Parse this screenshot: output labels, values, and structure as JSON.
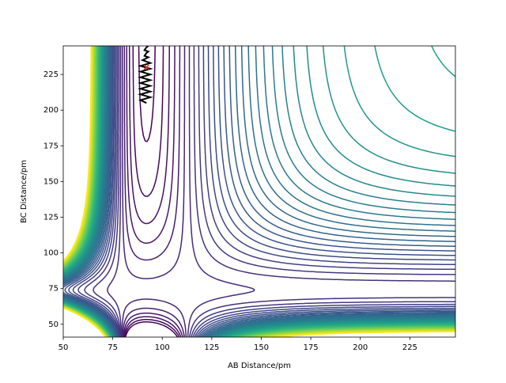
{
  "chart_data": {
    "type": "contour",
    "x_label": "AB Distance/pm",
    "y_label": "BC Distance/pm",
    "xlim": [
      50,
      248
    ],
    "ylim": [
      41,
      245
    ],
    "xticks": [
      50,
      75,
      100,
      125,
      150,
      175,
      200,
      225
    ],
    "yticks": [
      50,
      75,
      100,
      125,
      150,
      175,
      200,
      225
    ],
    "grid": false,
    "colormap": "viridis",
    "levels": [
      -560,
      -540,
      -520,
      -500,
      -480,
      -460,
      -440,
      -420,
      -400,
      -380,
      -360,
      -340,
      -320,
      -300,
      -280,
      -260,
      -240,
      -220,
      -200,
      -180,
      -160,
      -140,
      -120,
      -100,
      -80,
      -60,
      -40,
      -20,
      0,
      20,
      40,
      60,
      80,
      100,
      120,
      140,
      160,
      180,
      200,
      220,
      240,
      260,
      280,
      300,
      320,
      340,
      360,
      380,
      400
    ],
    "trajectory": {
      "color": "#000000",
      "x": [
        92,
        89,
        94,
        89,
        94,
        89,
        94,
        89,
        94,
        89,
        94,
        89,
        94,
        89,
        94,
        90,
        93,
        91,
        92,
        93,
        91,
        92,
        93
      ],
      "y": [
        205,
        207,
        209,
        211,
        213,
        215,
        217,
        219,
        221,
        223,
        225,
        227,
        229,
        231,
        233,
        235,
        237,
        238,
        240,
        241,
        242,
        244,
        245
      ]
    },
    "marker": {
      "x": 92,
      "y": 230,
      "color": "#d62728"
    }
  }
}
